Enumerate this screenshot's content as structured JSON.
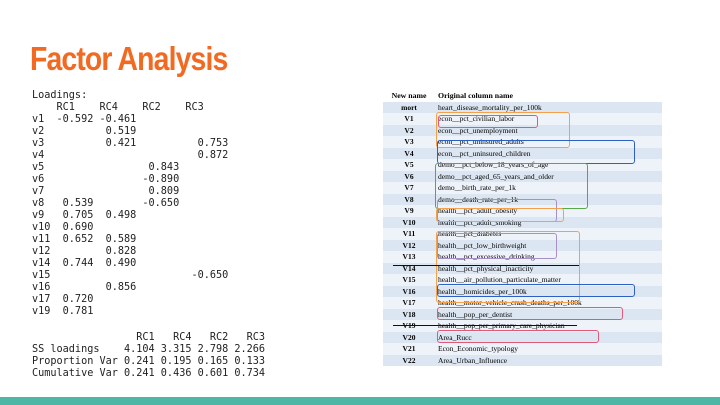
{
  "slide": {
    "title": "Factor Analysis",
    "loadings_text": "Loadings:\n    RC1    RC4    RC2    RC3\nv1  -0.592 -0.461\nv2          0.519\nv3          0.421          0.753\nv4                         0.872\nv5                 0.843\nv6                -0.890\nv7                 0.809\nv8   0.539        -0.650\nv9   0.705  0.498\nv10  0.690\nv11  0.652  0.589\nv12         0.828\nv14  0.744  0.490\nv15                       -0.650\nv16         0.856\nv17  0.720\nv19  0.781",
    "stats_text": "                 RC1   RC4   RC2   RC3\nSS loadings    4.104 3.315 2.798 2.266\nProportion Var 0.241 0.195 0.165 0.133\nCumulative Var 0.241 0.436 0.601 0.734"
  },
  "mapping_table": {
    "headers": [
      "New name",
      "Original column name"
    ],
    "rows": [
      [
        "mort",
        "heart_disease_mortality_per_100k"
      ],
      [
        "V1",
        "econ__pct_civilian_labor"
      ],
      [
        "V2",
        "econ__pct_unemployment"
      ],
      [
        "V3",
        "econ__pct_uninsured_adults"
      ],
      [
        "V4",
        "econ__pct_uninsured_children"
      ],
      [
        "V5",
        "demo__pct_below_18_years_of_age"
      ],
      [
        "V6",
        "demo__pct_aged_65_years_and_older"
      ],
      [
        "V7",
        "demo__birth_rate_per_1k"
      ],
      [
        "V8",
        "demo__death_rate_per_1k"
      ],
      [
        "V9",
        "health__pct_adult_obesity"
      ],
      [
        "V10",
        "health__pct_adult_smoking"
      ],
      [
        "V11",
        "health__pct_diabetes"
      ],
      [
        "V12",
        "health__pct_low_birthweight"
      ],
      [
        "V13",
        "health__pct_excessive_drinking"
      ],
      [
        "V14",
        "health__pct_physical_inacticity"
      ],
      [
        "V15",
        "health__air_pollution_particulate_matter"
      ],
      [
        "V16",
        "health__homicides_per_100k"
      ],
      [
        "V17",
        "health__motor_vehicle_crash_deaths_per_100k"
      ],
      [
        "V18",
        "health__pop_per_dentist"
      ],
      [
        "V19",
        "health__pop_per_primary_care_physician"
      ],
      [
        "V20",
        "Area_Rucc"
      ],
      [
        "V21",
        "Econ_Economic_typology"
      ],
      [
        "V22",
        "Area_Urban_Influence"
      ]
    ]
  },
  "colors": {
    "title": "#f26a21",
    "orange": "#f5a04a",
    "blue": "#2e5fc4",
    "green": "#58a84a",
    "purple": "#a98fc8",
    "pink": "#e05a78",
    "bottom_bar": "#4db6a5"
  }
}
